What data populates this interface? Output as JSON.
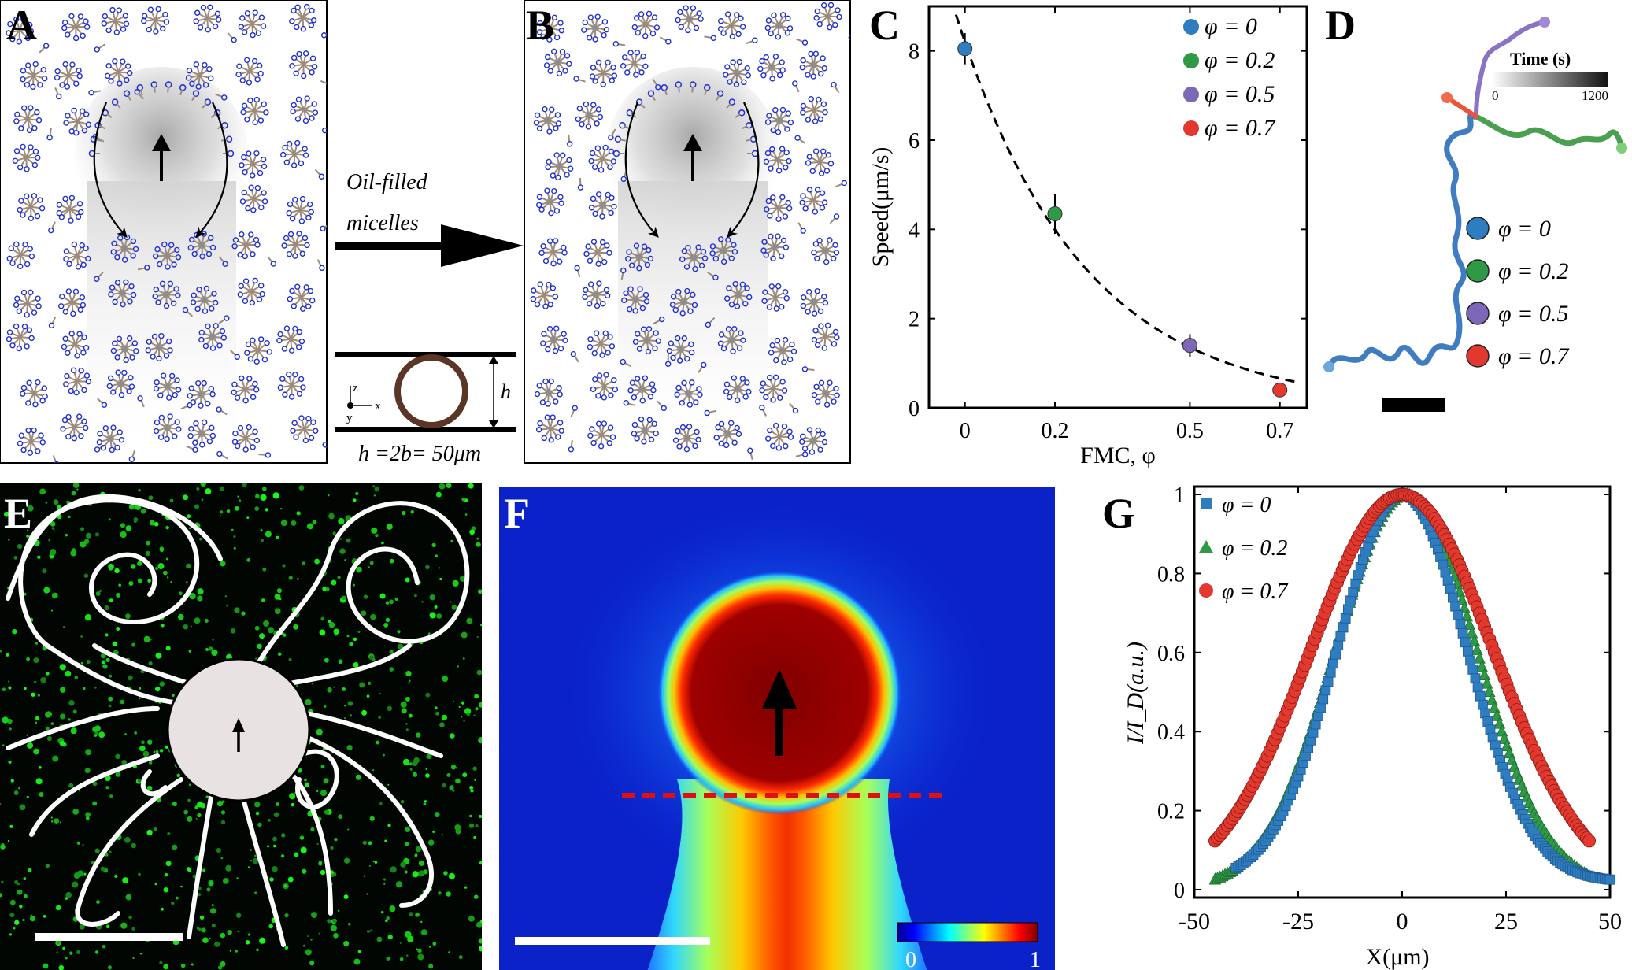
{
  "panels": {
    "A": "A",
    "B": "B",
    "C": "C",
    "D": "D",
    "E": "E",
    "F": "F",
    "G": "G"
  },
  "arrow_text": {
    "line1": "Oil-filled",
    "line2": "micelles"
  },
  "channel": {
    "h_label": "h",
    "axis_z": "z",
    "axis_y": "y",
    "axis_x": "x",
    "caption": "h =2b= 50μm"
  },
  "colors": {
    "phi0": "#2f7dc1",
    "phi02": "#2e9a45",
    "phi05": "#7d68b8",
    "phi07": "#e2382e",
    "micelle_head": "#1f2fd0",
    "micelle_tail": "#9c8b7a"
  },
  "chartC": {
    "chart_data": {
      "type": "scatter",
      "xlabel": "FMC, φ",
      "ylabel": "Speed(μm/s)",
      "xlim": [
        -0.08,
        0.76
      ],
      "ylim": [
        0,
        9
      ],
      "xticks": [
        0,
        0.2,
        0.5,
        0.7
      ],
      "xticklabels": [
        "0",
        "0.2",
        "0.5",
        "0.7"
      ],
      "yticks": [
        0,
        2,
        4,
        6,
        8
      ],
      "yticklabels": [
        "0",
        "2",
        "4",
        "6",
        "8"
      ],
      "series": [
        {
          "name": "φ = 0",
          "x": [
            0
          ],
          "y": [
            8.05
          ],
          "err": [
            0.35
          ]
        },
        {
          "name": "φ = 0.2",
          "x": [
            0.2
          ],
          "y": [
            4.35
          ],
          "err": [
            0.45
          ]
        },
        {
          "name": "φ = 0.5",
          "x": [
            0.5
          ],
          "y": [
            1.4
          ],
          "err": [
            0.25
          ]
        },
        {
          "name": "φ = 0.7",
          "x": [
            0.7
          ],
          "y": [
            0.4
          ],
          "err": [
            0.1
          ]
        }
      ],
      "fit": {
        "style": "dashed",
        "form": "exponential",
        "a": 8.2,
        "k": 3.6
      },
      "legend_position": "top-right"
    }
  },
  "panelD": {
    "colorbar_title": "Time (s)",
    "colorbar_min": "0",
    "colorbar_max": "1200",
    "legend": [
      "φ = 0",
      "φ = 0.2",
      "φ = 0.5",
      "φ = 0.7"
    ]
  },
  "panelF": {
    "colorbar_min": "0",
    "colorbar_max": "1"
  },
  "chartG": {
    "chart_data": {
      "type": "scatter",
      "xlabel": "X(μm)",
      "ylabel": "I/I_D(a.u.)",
      "xlim": [
        -50,
        50
      ],
      "ylim": [
        -0.02,
        1.02
      ],
      "xticks": [
        -50,
        -25,
        0,
        25,
        50
      ],
      "xticklabels": [
        "-50",
        "-25",
        "0",
        "25",
        "50"
      ],
      "yticks": [
        0,
        0.2,
        0.4,
        0.6,
        0.8,
        1
      ],
      "yticklabels": [
        "0",
        "0.2",
        "0.4",
        "0.6",
        "0.8",
        "1"
      ],
      "series": [
        {
          "name": "φ = 0",
          "marker": "square",
          "x_range": [
            -40,
            50
          ],
          "peak": 1.0,
          "center": 0,
          "sigma": 15.5,
          "baseline": 0.02
        },
        {
          "name": "φ = 0.2",
          "marker": "triangle",
          "x_range": [
            -45,
            45
          ],
          "peak": 1.0,
          "center": 1,
          "sigma": 17,
          "baseline": 0.0
        },
        {
          "name": "φ = 0.7",
          "marker": "circle",
          "x_range": [
            -45,
            45
          ],
          "peak": 1.0,
          "center": 0,
          "sigma": 22,
          "baseline": 0.0
        }
      ],
      "legend_position": "top-left"
    }
  }
}
